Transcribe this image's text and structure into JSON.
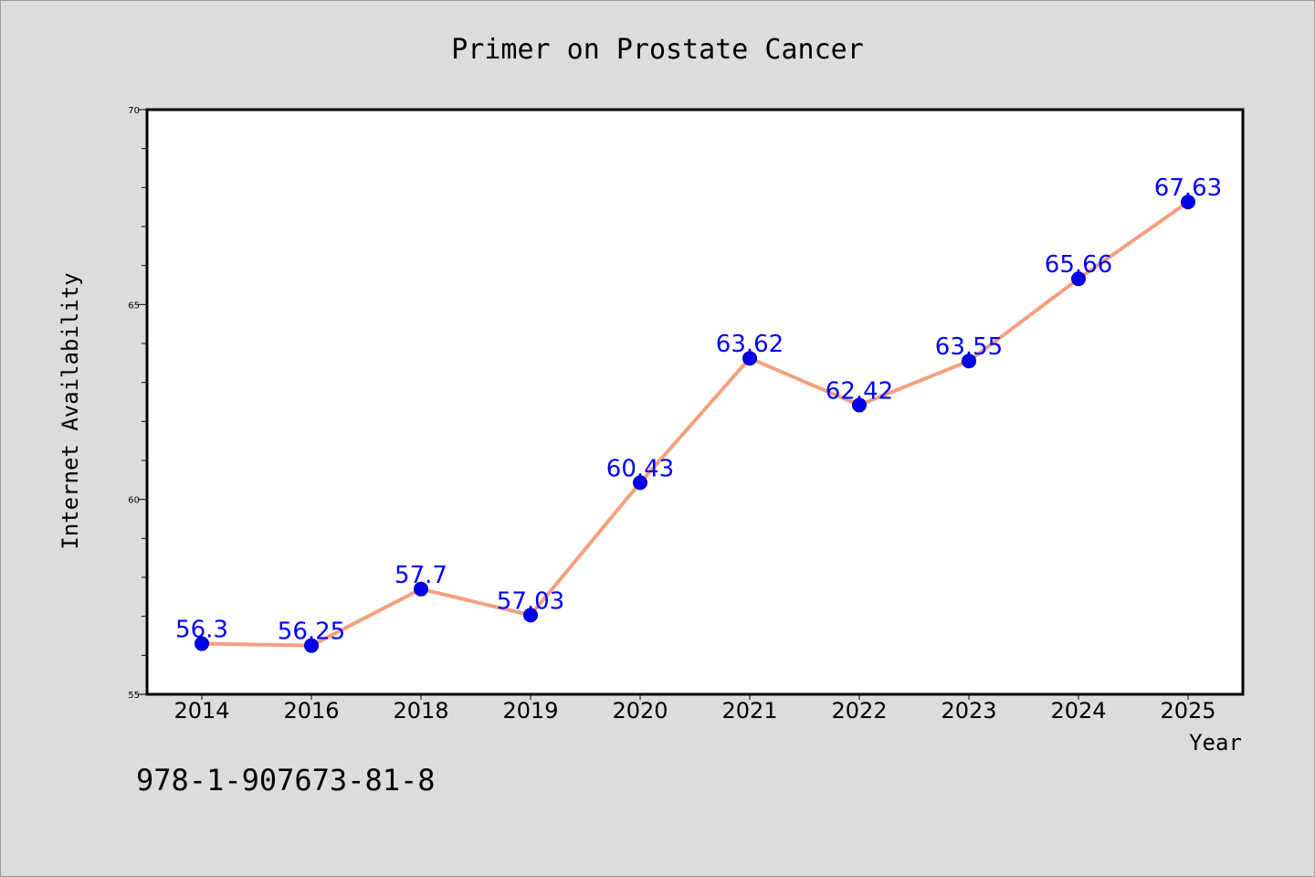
{
  "chart_data": {
    "type": "line",
    "title": "Primer on Prostate Cancer",
    "xlabel": "Year",
    "ylabel": "Internet Availability",
    "categories": [
      "2014",
      "2016",
      "2018",
      "2019",
      "2020",
      "2021",
      "2022",
      "2023",
      "2024",
      "2025"
    ],
    "series": [
      {
        "values": [
          56.3,
          56.25,
          57.7,
          57.03,
          60.43,
          63.62,
          62.42,
          63.55,
          65.66,
          67.63
        ],
        "data_labels": [
          "56.3",
          "56.25",
          "57.7",
          "57.03",
          "60.43",
          "63.62",
          "62.42",
          "63.55",
          "65.66",
          "67.63"
        ]
      }
    ],
    "ylim": [
      55,
      70
    ],
    "y_ticks": [
      55,
      60,
      65,
      70
    ],
    "y_tick_labels": [
      "55",
      "60",
      "65",
      "70"
    ],
    "y_minor_step": 1,
    "grid": false,
    "legend": "none",
    "colors": {
      "line": "#f4a07e",
      "marker": "#0000ee",
      "data_label": "#0000ff",
      "plot_background": "#ffffff",
      "figure_background": "#dcdcdc"
    }
  },
  "footer": {
    "text": "978-1-907673-81-8"
  }
}
